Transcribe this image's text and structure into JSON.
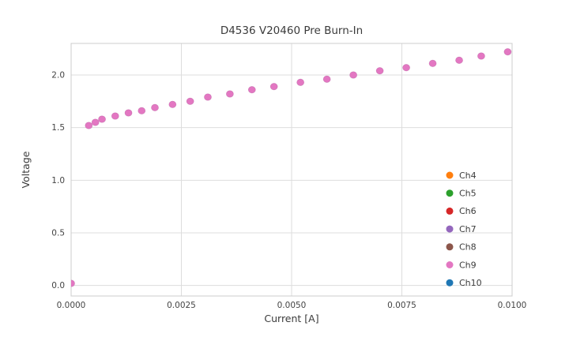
{
  "chart_data": {
    "type": "scatter",
    "title": "D4536 V20460 Pre Burn-In",
    "xlabel": "Current [A]",
    "ylabel": "Voltage",
    "xlim": [
      0.0,
      0.01
    ],
    "ylim": [
      -0.1,
      2.3
    ],
    "xticks": [
      0.0,
      0.0025,
      0.005,
      0.0075,
      0.01
    ],
    "xtick_labels": [
      "0.0000",
      "0.0025",
      "0.0050",
      "0.0075",
      "0.0100"
    ],
    "yticks": [
      0.0,
      0.5,
      1.0,
      1.5,
      2.0
    ],
    "ytick_labels": [
      "0.0",
      "0.5",
      "1.0",
      "1.5",
      "2.0"
    ],
    "grid": true,
    "background_color": "#ffffff",
    "grid_color": "#dddddd",
    "border_color": "#cccccc",
    "text_color": "#3b3b3b",
    "legend_position": "lower right",
    "legend": [
      {
        "label": "Ch4",
        "color": "#ff7f0e"
      },
      {
        "label": "Ch5",
        "color": "#2ca02c"
      },
      {
        "label": "Ch6",
        "color": "#d62728"
      },
      {
        "label": "Ch7",
        "color": "#9467bd"
      },
      {
        "label": "Ch8",
        "color": "#8c564b"
      },
      {
        "label": "Ch9",
        "color": "#e377c2"
      },
      {
        "label": "Ch10",
        "color": "#1f77b4"
      }
    ],
    "series": [
      {
        "name": "Ch9",
        "color": "#e377c2",
        "marker": "circle",
        "points": [
          [
            0.0,
            0.02
          ],
          [
            0.0004,
            1.52
          ],
          [
            0.00055,
            1.55
          ],
          [
            0.0007,
            1.58
          ],
          [
            0.001,
            1.61
          ],
          [
            0.0013,
            1.64
          ],
          [
            0.0016,
            1.66
          ],
          [
            0.0019,
            1.69
          ],
          [
            0.0023,
            1.72
          ],
          [
            0.0027,
            1.75
          ],
          [
            0.0031,
            1.79
          ],
          [
            0.0036,
            1.82
          ],
          [
            0.0041,
            1.86
          ],
          [
            0.0046,
            1.89
          ],
          [
            0.0052,
            1.93
          ],
          [
            0.0058,
            1.96
          ],
          [
            0.0064,
            2.0
          ],
          [
            0.007,
            2.04
          ],
          [
            0.0076,
            2.07
          ],
          [
            0.0082,
            2.11
          ],
          [
            0.0088,
            2.14
          ],
          [
            0.0093,
            2.18
          ],
          [
            0.0099,
            2.22
          ]
        ]
      }
    ]
  }
}
